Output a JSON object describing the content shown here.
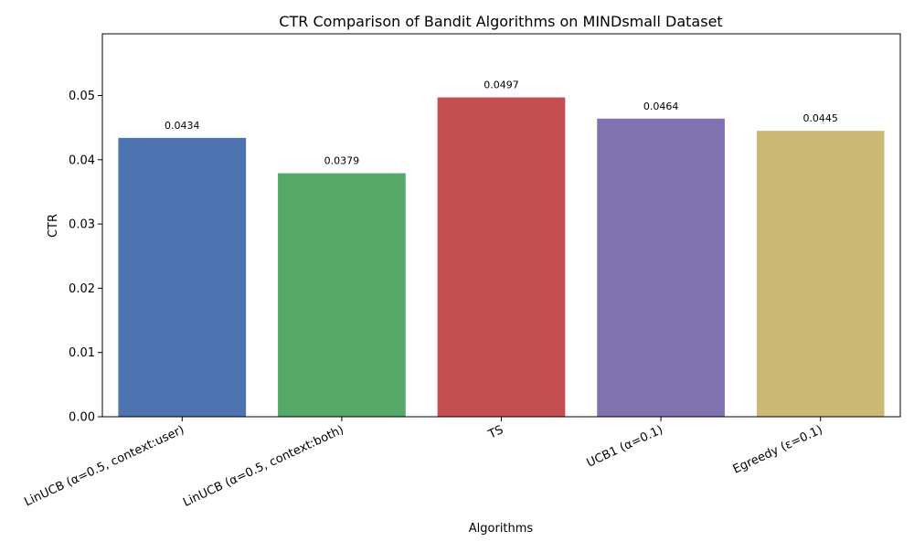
{
  "chart_data": {
    "type": "bar",
    "title": "CTR Comparison of Bandit Algorithms on MINDsmall Dataset",
    "xlabel": "Algorithms",
    "ylabel": "CTR",
    "categories": [
      "LinUCB (α=0.5, context:user)",
      "LinUCB (α=0.5, context:both)",
      "TS",
      "UCB1 (α=0.1)",
      "Egreedy (ε=0.1)"
    ],
    "values": [
      0.0434,
      0.0379,
      0.0497,
      0.0464,
      0.0445
    ],
    "data_labels": [
      "0.0434",
      "0.0379",
      "0.0497",
      "0.0464",
      "0.0445"
    ],
    "colors": [
      "#4c72b0",
      "#55a868",
      "#c44e52",
      "#8172b2",
      "#ccb974"
    ],
    "ylim": [
      0,
      0.0596
    ],
    "yticks": [
      0.0,
      0.01,
      0.02,
      0.03,
      0.04,
      0.05
    ],
    "ytick_labels": [
      "0.00",
      "0.01",
      "0.02",
      "0.03",
      "0.04",
      "0.05"
    ],
    "grid": false,
    "legend": "none"
  }
}
